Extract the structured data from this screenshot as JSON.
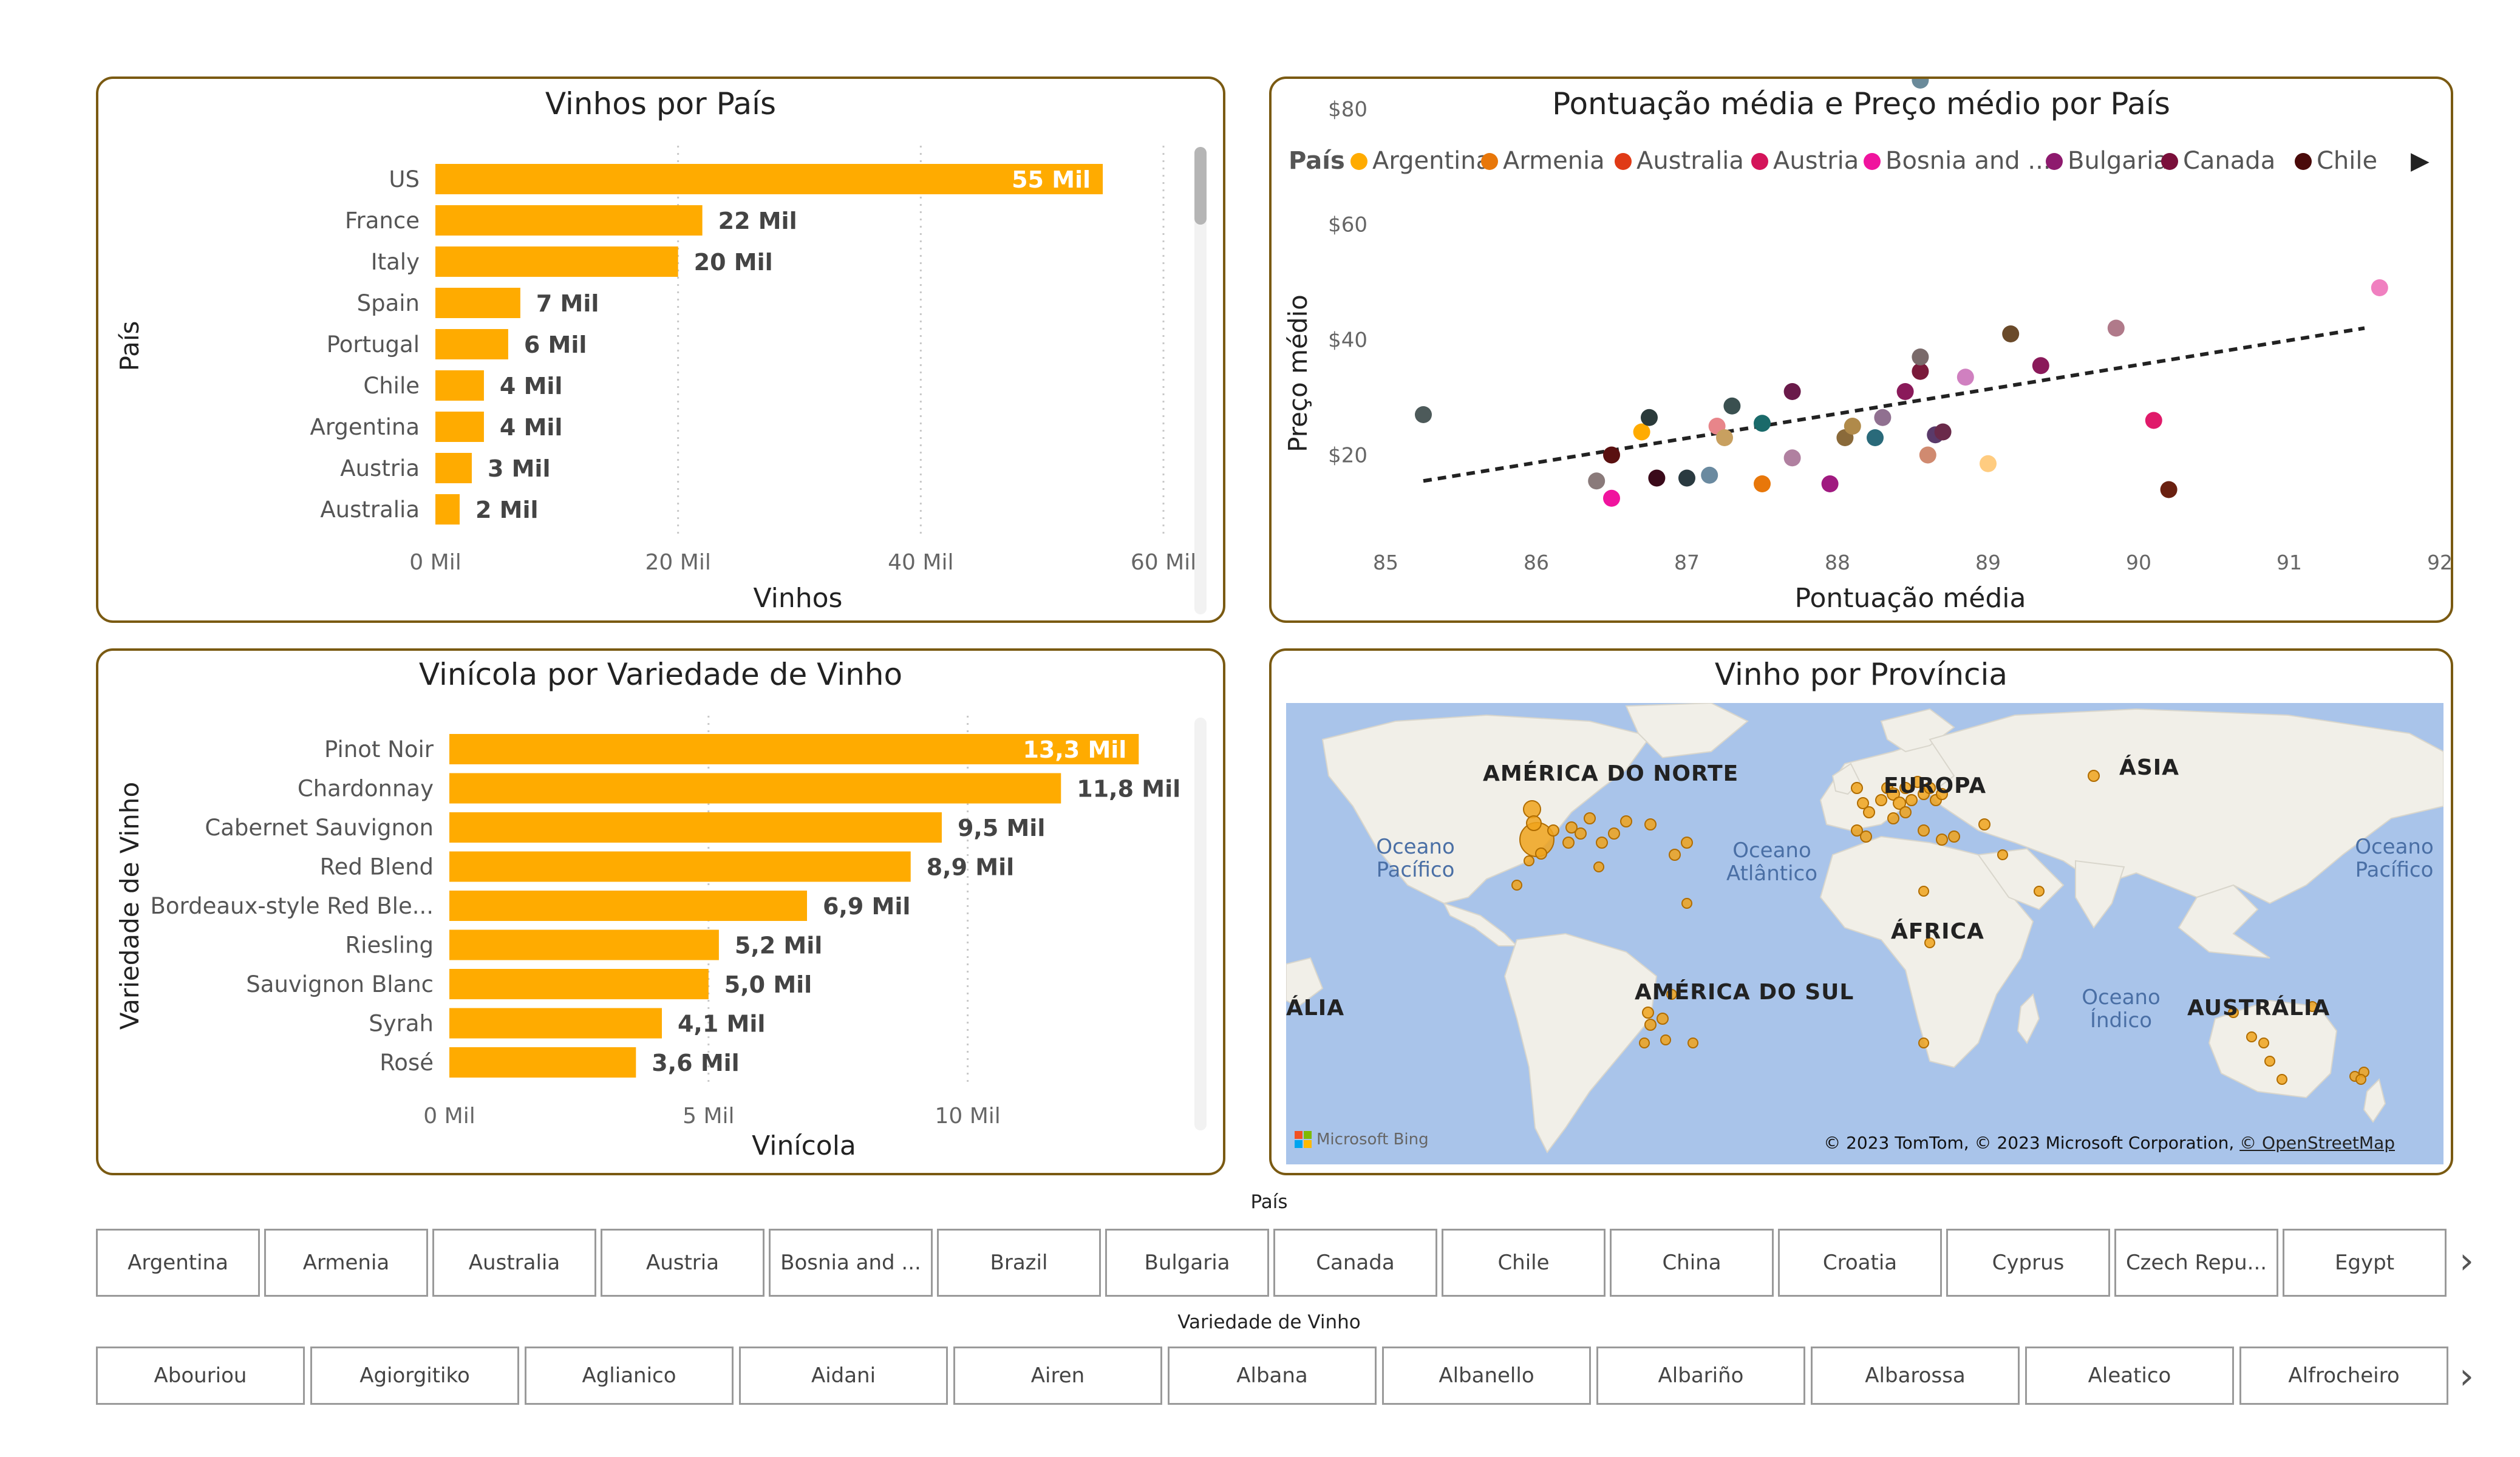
{
  "colors": {
    "accent_bar": "#ffab00",
    "panel_border": "#7a5a12",
    "map_water": "#a9c4ea",
    "map_land": "#f1efe8"
  },
  "bar_chart_1": {
    "title": "Vinhos por País",
    "ylabel": "País",
    "xlabel": "Vinhos",
    "ticks": [
      "0 Mil",
      "20 Mil",
      "40 Mil",
      "60 Mil"
    ],
    "chart_data": {
      "type": "bar",
      "categories": [
        "US",
        "France",
        "Italy",
        "Spain",
        "Portugal",
        "Chile",
        "Argentina",
        "Austria",
        "Australia"
      ],
      "values": [
        55,
        22,
        20,
        7,
        6,
        4,
        4,
        3,
        2
      ],
      "labels": [
        "55 Mil",
        "22 Mil",
        "20 Mil",
        "7 Mil",
        "6 Mil",
        "4 Mil",
        "4 Mil",
        "3 Mil",
        "2 Mil"
      ],
      "xlim": [
        0,
        60
      ]
    }
  },
  "scatter_chart": {
    "title": "Pontuação média e Preço médio por País",
    "legend_label": "País",
    "legend": [
      {
        "name": "Argentina",
        "color": "#ffab00"
      },
      {
        "name": "Armenia",
        "color": "#e8770a"
      },
      {
        "name": "Australia",
        "color": "#e03a16"
      },
      {
        "name": "Austria",
        "color": "#d4145a"
      },
      {
        "name": "Bosnia and ...",
        "color": "#f0149e"
      },
      {
        "name": "Bulgaria",
        "color": "#8e1a6e"
      },
      {
        "name": "Canada",
        "color": "#7a0f3a"
      },
      {
        "name": "Chile",
        "color": "#4a0a0a"
      }
    ],
    "xlabel": "Pontuação média",
    "ylabel": "Preço médio",
    "x_ticks": [
      "85",
      "86",
      "87",
      "88",
      "89",
      "90",
      "91",
      "92"
    ],
    "y_ticks": [
      "$20",
      "$40",
      "$60",
      "$80"
    ],
    "chart_data": {
      "type": "scatter",
      "xlim": [
        85,
        92
      ],
      "ylim": [
        5,
        85
      ],
      "points": [
        {
          "x": 85.25,
          "y": 27,
          "c": "#4d5a5a"
        },
        {
          "x": 86.4,
          "y": 15.5,
          "c": "#8a7a7a"
        },
        {
          "x": 86.5,
          "y": 20,
          "c": "#5a1010"
        },
        {
          "x": 86.5,
          "y": 12.5,
          "c": "#f0149e"
        },
        {
          "x": 86.7,
          "y": 24,
          "c": "#ffab00"
        },
        {
          "x": 86.75,
          "y": 26.5,
          "c": "#2a3a3a"
        },
        {
          "x": 86.8,
          "y": 16,
          "c": "#3a0a1a"
        },
        {
          "x": 87.0,
          "y": 16,
          "c": "#2a3a40"
        },
        {
          "x": 87.15,
          "y": 16.5,
          "c": "#6a8aa0"
        },
        {
          "x": 87.2,
          "y": 25,
          "c": "#e8858a"
        },
        {
          "x": 87.25,
          "y": 23,
          "c": "#c8a060"
        },
        {
          "x": 87.3,
          "y": 28.5,
          "c": "#3a5050"
        },
        {
          "x": 87.5,
          "y": 15,
          "c": "#e8770a"
        },
        {
          "x": 87.5,
          "y": 25.5,
          "c": "#1a6a6a"
        },
        {
          "x": 87.7,
          "y": 19.5,
          "c": "#b080a0"
        },
        {
          "x": 87.7,
          "y": 31,
          "c": "#6a1a4a"
        },
        {
          "x": 87.95,
          "y": 15,
          "c": "#a01a80"
        },
        {
          "x": 88.05,
          "y": 23,
          "c": "#8a6a3a"
        },
        {
          "x": 88.1,
          "y": 25,
          "c": "#b08a4a"
        },
        {
          "x": 88.25,
          "y": 23,
          "c": "#2a6a7a"
        },
        {
          "x": 88.3,
          "y": 26.5,
          "c": "#907090"
        },
        {
          "x": 88.45,
          "y": 31,
          "c": "#8a1a5a"
        },
        {
          "x": 88.55,
          "y": 34.5,
          "c": "#7a1a3a"
        },
        {
          "x": 88.55,
          "y": 37,
          "c": "#7a6a6a"
        },
        {
          "x": 88.55,
          "y": 85,
          "c": "#6a8a9a"
        },
        {
          "x": 88.6,
          "y": 20,
          "c": "#d08a70"
        },
        {
          "x": 88.65,
          "y": 23.5,
          "c": "#5a3a6a"
        },
        {
          "x": 88.7,
          "y": 24,
          "c": "#6a2a4a"
        },
        {
          "x": 88.85,
          "y": 33.5,
          "c": "#d080c0"
        },
        {
          "x": 89.0,
          "y": 18.5,
          "c": "#ffcc80"
        },
        {
          "x": 89.15,
          "y": 41,
          "c": "#6a4a2a"
        },
        {
          "x": 89.35,
          "y": 35.5,
          "c": "#8a1a5a"
        },
        {
          "x": 89.85,
          "y": 42,
          "c": "#b07a8a"
        },
        {
          "x": 90.1,
          "y": 26,
          "c": "#e01a6a"
        },
        {
          "x": 90.2,
          "y": 14,
          "c": "#6a2010"
        },
        {
          "x": 91.6,
          "y": 49,
          "c": "#f080c0"
        }
      ],
      "trend": {
        "x0": 85.25,
        "y0": 15.5,
        "x1": 91.5,
        "y1": 42
      }
    }
  },
  "bar_chart_2": {
    "title": "Vinícola por Variedade de Vinho",
    "ylabel": "Variedade de Vinho",
    "xlabel": "Vinícola",
    "ticks": [
      "0 Mil",
      "5 Mil",
      "10 Mil"
    ],
    "chart_data": {
      "type": "bar",
      "categories": [
        "Pinot Noir",
        "Chardonnay",
        "Cabernet Sauvignon",
        "Red Blend",
        "Bordeaux-style Red Ble...",
        "Riesling",
        "Sauvignon Blanc",
        "Syrah",
        "Rosé"
      ],
      "values": [
        13.3,
        11.8,
        9.5,
        8.9,
        6.9,
        5.2,
        5.0,
        4.1,
        3.6
      ],
      "labels": [
        "13,3 Mil",
        "11,8 Mil",
        "9,5 Mil",
        "8,9 Mil",
        "6,9 Mil",
        "5,2 Mil",
        "5,0 Mil",
        "4,1 Mil",
        "3,6 Mil"
      ],
      "xlim": [
        0,
        13.8
      ]
    }
  },
  "map": {
    "title": "Vinho por Província",
    "labels": [
      "AMÉRICA DO NORTE",
      "EUROPA",
      "ÁSIA",
      "ÁFRICA",
      "AMÉRICA DO SUL",
      "AUSTRÁLIA",
      "ÁLIA"
    ],
    "oceans": [
      "Oceano Pacífico",
      "Oceano Atlântico",
      "Oceano Índico",
      "Oceano Pacífico"
    ],
    "attribution": "© 2023 TomTom, © 2023 Microsoft Corporation,",
    "attribution_link": "© OpenStreetMap",
    "bing_label": "Microsoft Bing"
  },
  "slicer_country": {
    "title": "País",
    "items": [
      "Argentina",
      "Armenia",
      "Australia",
      "Austria",
      "Bosnia and ...",
      "Brazil",
      "Bulgaria",
      "Canada",
      "Chile",
      "China",
      "Croatia",
      "Cyprus",
      "Czech Repu...",
      "Egypt"
    ]
  },
  "slicer_variety": {
    "title": "Variedade de Vinho",
    "items": [
      "Abouriou",
      "Agiorgitiko",
      "Aglianico",
      "Aidani",
      "Airen",
      "Albana",
      "Albanello",
      "Albariño",
      "Albarossa",
      "Aleatico",
      "Alfrocheiro"
    ]
  }
}
